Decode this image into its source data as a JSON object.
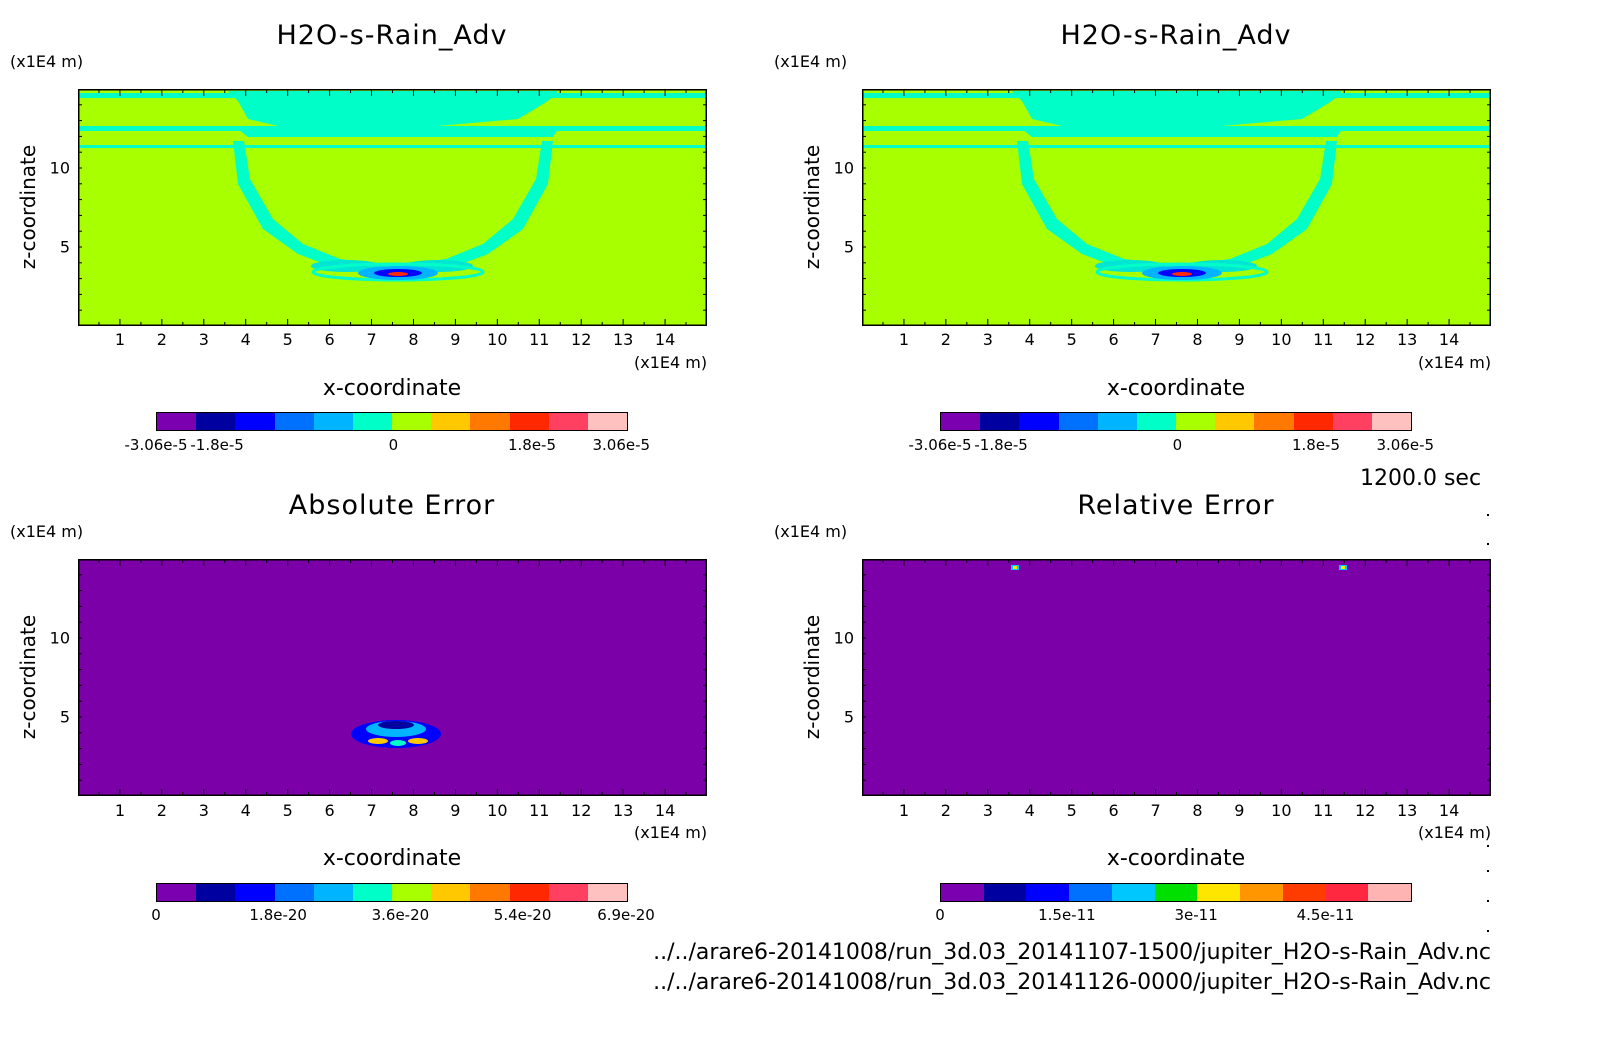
{
  "chart_data": [
    {
      "type": "heatmap",
      "title": "H2O-s-Rain_Adv",
      "xlabel": "x-coordinate",
      "ylabel": "z-coordinate",
      "x_unit": "(x1E4 m)",
      "y_unit": "(x1E4 m)",
      "xlim": [
        0,
        15
      ],
      "ylim": [
        0,
        15
      ],
      "x_ticks": [
        1,
        2,
        3,
        4,
        5,
        6,
        7,
        8,
        9,
        10,
        11,
        12,
        13,
        14
      ],
      "y_ticks": [
        5,
        10
      ],
      "colorbar": {
        "labels": [
          "-3.06e-5",
          "-1.8e-5",
          "0",
          "1.8e-5",
          "3.06e-5"
        ],
        "colors": [
          "#7b00b0",
          "#0000a0",
          "#0000ff",
          "#0070ff",
          "#00b4ff",
          "#00ffc8",
          "#a8ff00",
          "#ffc800",
          "#ff7800",
          "#ff2800",
          "#ff4060",
          "#ffc0c0"
        ]
      },
      "background": "#a8ff00",
      "features": "cyan horizontal bands near model top (z~12-14); U-shaped cyan contour from x~4 to x~11 down to z~3; blue/red dipole minimum near x~7.5, z~3"
    },
    {
      "type": "heatmap",
      "title": "H2O-s-Rain_Adv",
      "xlabel": "x-coordinate",
      "ylabel": "z-coordinate",
      "x_unit": "(x1E4 m)",
      "y_unit": "(x1E4 m)",
      "xlim": [
        0,
        15
      ],
      "ylim": [
        0,
        15
      ],
      "x_ticks": [
        1,
        2,
        3,
        4,
        5,
        6,
        7,
        8,
        9,
        10,
        11,
        12,
        13,
        14
      ],
      "y_ticks": [
        5,
        10
      ],
      "colorbar": {
        "labels": [
          "-3.06e-5",
          "-1.8e-5",
          "0",
          "1.8e-5",
          "3.06e-5"
        ],
        "colors": [
          "#7b00b0",
          "#0000a0",
          "#0000ff",
          "#0070ff",
          "#00b4ff",
          "#00ffc8",
          "#a8ff00",
          "#ffc800",
          "#ff7800",
          "#ff2800",
          "#ff4060",
          "#ffc0c0"
        ]
      },
      "background": "#a8ff00"
    },
    {
      "type": "heatmap",
      "title": "Absolute Error",
      "xlabel": "x-coordinate",
      "ylabel": "z-coordinate",
      "x_unit": "(x1E4 m)",
      "y_unit": "(x1E4 m)",
      "xlim": [
        0,
        15
      ],
      "ylim": [
        0,
        15
      ],
      "x_ticks": [
        1,
        2,
        3,
        4,
        5,
        6,
        7,
        8,
        9,
        10,
        11,
        12,
        13,
        14
      ],
      "y_ticks": [
        5,
        10
      ],
      "colorbar": {
        "labels": [
          "0",
          "1.8e-20",
          "3.6e-20",
          "5.4e-20",
          "6.9e-20"
        ],
        "colors": [
          "#7b00b0",
          "#0000a0",
          "#0000ff",
          "#0070ff",
          "#00b4ff",
          "#00ffc8",
          "#a8ff00",
          "#ffc800",
          "#ff7800",
          "#ff2800",
          "#ff4060",
          "#ffc0c0"
        ]
      },
      "background": "#7b00a8",
      "features": "small error patch near x~7-9, z~3-4"
    },
    {
      "type": "heatmap",
      "title": "Relative Error",
      "xlabel": "x-coordinate",
      "ylabel": "z-coordinate",
      "x_unit": "(x1E4 m)",
      "y_unit": "(x1E4 m)",
      "xlim": [
        0,
        15
      ],
      "ylim": [
        0,
        15
      ],
      "x_ticks": [
        1,
        2,
        3,
        4,
        5,
        6,
        7,
        8,
        9,
        10,
        11,
        12,
        13,
        14
      ],
      "y_ticks": [
        5,
        10
      ],
      "colorbar": {
        "labels": [
          "0",
          "1.5e-11",
          "3e-11",
          "4.5e-11"
        ],
        "colors": [
          "#7b00b0",
          "#0000a0",
          "#0000ff",
          "#0070ff",
          "#00c8ff",
          "#00e000",
          "#ffe600",
          "#ff9600",
          "#ff3c00",
          "#ff2840",
          "#ffb4b4"
        ]
      },
      "background": "#7b00a8",
      "features": "tiny spots near top at x~3.7 and x~11.5"
    }
  ],
  "time_label": "1200.0 sec",
  "file_paths": [
    "../../arare6-20141008/run_3d.03_20141107-1500/jupiter_H2O-s-Rain_Adv.nc",
    "../../arare6-20141008/run_3d.03_20141126-0000/jupiter_H2O-s-Rain_Adv.nc"
  ]
}
